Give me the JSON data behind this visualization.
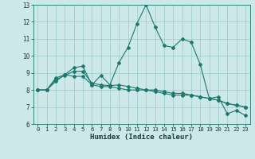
{
  "xlabel": "Humidex (Indice chaleur)",
  "ylabel": "",
  "background_color": "#cce8e8",
  "grid_color": "#99cccc",
  "line_color": "#1a7a6e",
  "xlim": [
    -0.5,
    23.5
  ],
  "ylim": [
    6,
    13
  ],
  "xticks": [
    0,
    1,
    2,
    3,
    4,
    5,
    6,
    7,
    8,
    9,
    10,
    11,
    12,
    13,
    14,
    15,
    16,
    17,
    18,
    19,
    20,
    21,
    22,
    23
  ],
  "yticks": [
    6,
    7,
    8,
    9,
    10,
    11,
    12,
    13
  ],
  "series": [
    {
      "x": [
        0,
        1,
        2,
        3,
        4,
        5,
        6,
        7,
        8,
        9,
        10,
        11,
        12,
        13,
        14,
        15,
        16,
        17,
        18,
        19,
        20,
        21,
        22,
        23
      ],
      "y": [
        8.0,
        8.0,
        8.7,
        8.9,
        9.3,
        9.4,
        8.3,
        8.85,
        8.3,
        9.6,
        10.5,
        11.9,
        13.0,
        11.7,
        10.6,
        10.5,
        11.0,
        10.8,
        9.5,
        7.5,
        7.6,
        6.6,
        6.8,
        6.5
      ]
    },
    {
      "x": [
        0,
        1,
        2,
        3,
        4,
        5,
        6,
        7,
        8,
        9,
        10,
        11,
        12,
        13,
        14,
        15,
        16,
        17,
        18,
        19,
        20,
        21,
        22,
        23
      ],
      "y": [
        8.0,
        8.0,
        8.5,
        8.9,
        8.8,
        8.8,
        8.3,
        8.2,
        8.2,
        8.1,
        8.0,
        8.0,
        8.0,
        8.0,
        7.9,
        7.8,
        7.8,
        7.7,
        7.6,
        7.5,
        7.4,
        7.2,
        7.1,
        7.0
      ]
    },
    {
      "x": [
        0,
        1,
        2,
        3,
        4,
        5,
        6,
        7,
        8,
        9,
        10,
        11,
        12,
        13,
        14,
        15,
        16,
        17,
        18,
        19,
        20,
        21,
        22,
        23
      ],
      "y": [
        8.0,
        8.0,
        8.6,
        8.85,
        9.1,
        9.1,
        8.4,
        8.3,
        8.25,
        8.3,
        8.2,
        8.1,
        8.0,
        7.9,
        7.8,
        7.7,
        7.7,
        7.7,
        7.6,
        7.5,
        7.4,
        7.2,
        7.1,
        7.0
      ]
    }
  ]
}
